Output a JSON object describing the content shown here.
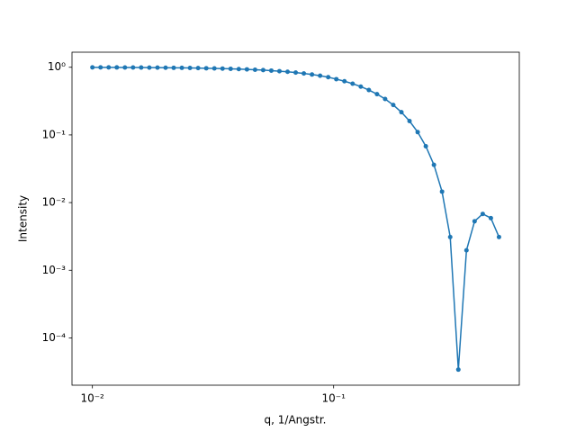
{
  "chart_data": {
    "type": "line",
    "x_label": "q, 1/Angstr.",
    "y_label": "Intensity",
    "x": [
      0.01,
      0.01081,
      0.01168,
      0.01262,
      0.01364,
      0.01474,
      0.01593,
      0.01722,
      0.01861,
      0.02011,
      0.02173,
      0.02349,
      0.02538,
      0.02743,
      0.02965,
      0.03204,
      0.03463,
      0.03742,
      0.04044,
      0.04371,
      0.04724,
      0.05105,
      0.05517,
      0.05962,
      0.06443,
      0.06963,
      0.07525,
      0.08133,
      0.08789,
      0.09498,
      0.1026,
      0.1109,
      0.1199,
      0.1296,
      0.14,
      0.1513,
      0.1635,
      0.1767,
      0.191,
      0.2064,
      0.2231,
      0.2411,
      0.2605,
      0.2815,
      0.3043,
      0.3289,
      0.3554,
      0.3841,
      0.4151,
      0.4486,
      0.4848
    ],
    "series": [
      {
        "color": "#1f77b4",
        "values": [
          0.996,
          0.9956,
          0.9949,
          0.9941,
          0.9931,
          0.9919,
          0.9906,
          0.989,
          0.9872,
          0.985,
          0.9826,
          0.9796,
          0.9763,
          0.9723,
          0.9677,
          0.9624,
          0.9563,
          0.9491,
          0.9408,
          0.9312,
          0.9202,
          0.9074,
          0.8926,
          0.8757,
          0.8567,
          0.8346,
          0.8096,
          0.7813,
          0.7497,
          0.7143,
          0.6675,
          0.6218,
          0.5719,
          0.518,
          0.4605,
          0.4008,
          0.3393,
          0.2772,
          0.2167,
          0.1603,
          0.11,
          0.068,
          0.0361,
          0.01451,
          0.0031,
          3.4e-05,
          0.00197,
          0.0053,
          0.0068,
          0.0059,
          0.0031
        ]
      }
    ],
    "x_log": true,
    "y_log": true,
    "xlim": [
      0.00823,
      0.5885
    ],
    "ylim": [
      2e-05,
      1.67
    ],
    "xticks": [
      {
        "value": 0.01,
        "label": "10⁻²"
      },
      {
        "value": 0.1,
        "label": "10⁻¹"
      }
    ],
    "yticks": [
      {
        "value": 0.0001,
        "label": "10⁻⁴"
      },
      {
        "value": 0.001,
        "label": "10⁻³"
      },
      {
        "value": 0.01,
        "label": "10⁻²"
      },
      {
        "value": 0.1,
        "label": "10⁻¹"
      },
      {
        "value": 1,
        "label": "10⁰"
      }
    ]
  }
}
